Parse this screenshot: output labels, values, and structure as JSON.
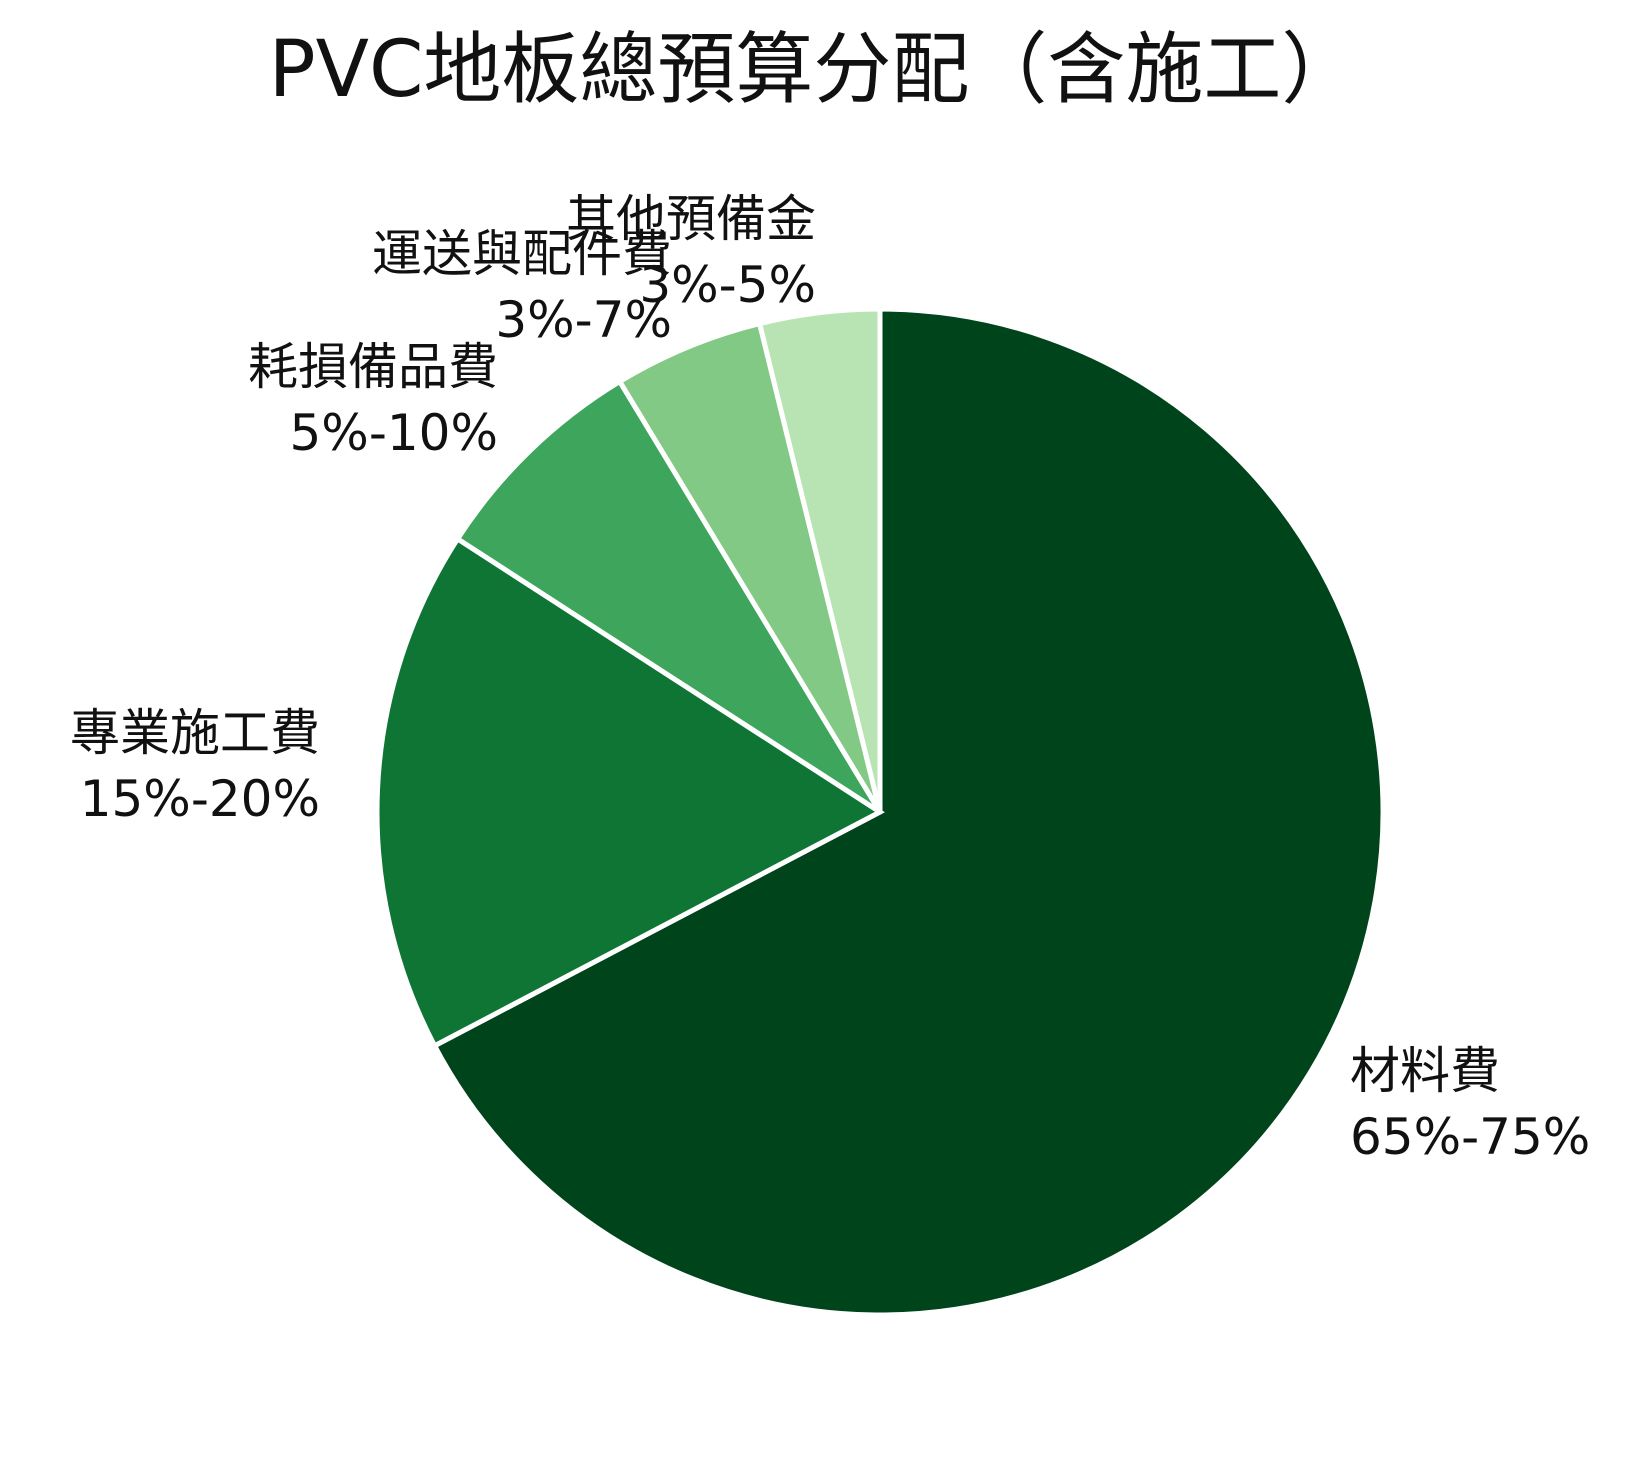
{
  "chart_data": {
    "type": "pie",
    "title": "PVC地板總預算分配（含施工）",
    "start_angle": "12 o'clock",
    "direction": "clockwise",
    "slices": [
      {
        "name": "材料費",
        "range_label": "65%-75%",
        "value": 70,
        "color": "#00441b"
      },
      {
        "name": "專業施工費",
        "range_label": "15%-20%",
        "value": 17.5,
        "color": "#0f7535"
      },
      {
        "name": "耗損備品費",
        "range_label": "5%-10%",
        "value": 7.5,
        "color": "#3ea65c"
      },
      {
        "name": "運送與配件費",
        "range_label": "3%-7%",
        "value": 5,
        "color": "#83c986"
      },
      {
        "name": "其他預備金",
        "range_label": "3%-5%",
        "value": 4,
        "color": "#b8e3b2"
      }
    ]
  }
}
